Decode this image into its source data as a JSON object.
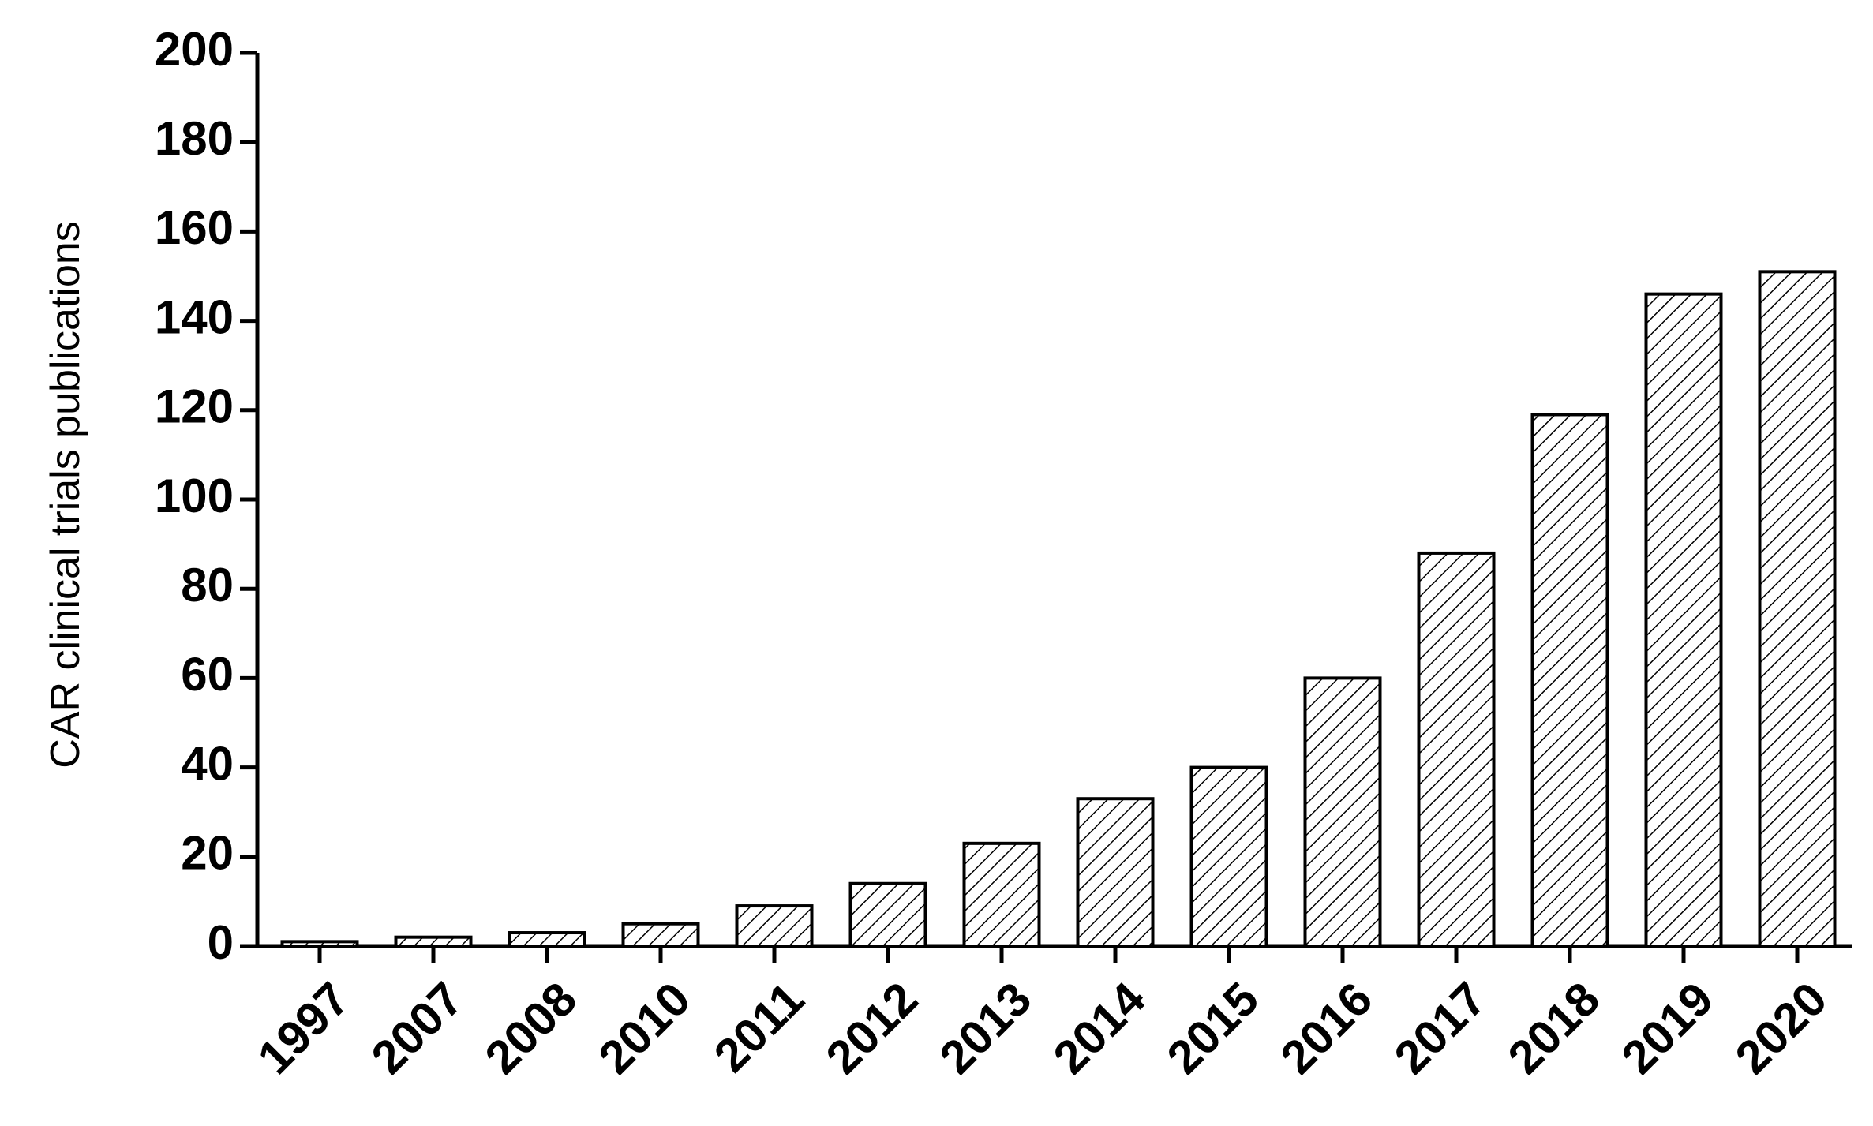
{
  "chart_data": {
    "type": "bar",
    "y_label": "CAR clinical trials publications",
    "categories": [
      "1997",
      "2007",
      "2008",
      "2010",
      "2011",
      "2012",
      "2013",
      "2014",
      "2015",
      "2016",
      "2017",
      "2018",
      "2019",
      "2020"
    ],
    "values": [
      1,
      2,
      3,
      5,
      9,
      14,
      23,
      33,
      40,
      60,
      88,
      119,
      146,
      151
    ],
    "color": "#000000",
    "hatch": true,
    "ylim": [
      0,
      200
    ],
    "yticks": [
      0,
      20,
      40,
      60,
      80,
      100,
      120,
      140,
      160,
      180,
      200
    ],
    "grid": false
  }
}
